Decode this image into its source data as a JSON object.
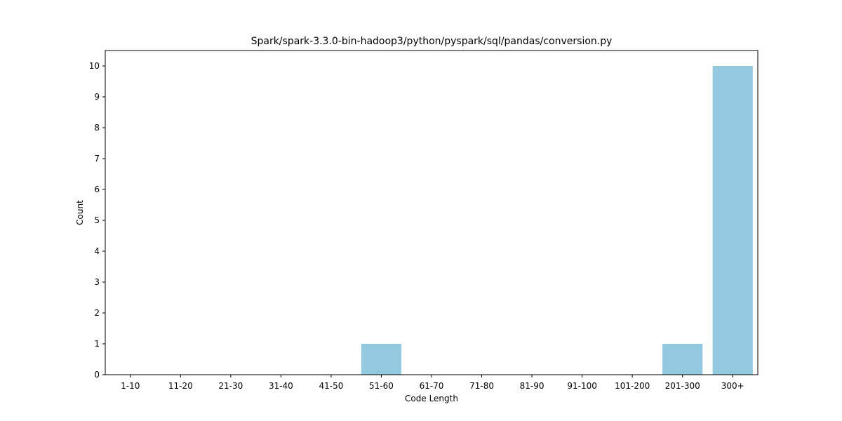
{
  "chart_data": {
    "type": "bar",
    "title": "Spark/spark-3.3.0-bin-hadoop3/python/pyspark/sql/pandas/conversion.py",
    "xlabel": "Code Length",
    "ylabel": "Count",
    "categories": [
      "1-10",
      "11-20",
      "21-30",
      "31-40",
      "41-50",
      "51-60",
      "61-70",
      "71-80",
      "81-90",
      "91-100",
      "101-200",
      "201-300",
      "300+"
    ],
    "values": [
      0,
      0,
      0,
      0,
      0,
      1,
      0,
      0,
      0,
      0,
      0,
      1,
      10
    ],
    "ylim": [
      0,
      10.5
    ],
    "yticks": [
      "0",
      "1",
      "2",
      "3",
      "4",
      "5",
      "6",
      "7",
      "8",
      "9",
      "10"
    ],
    "bar_color": "#92c9de",
    "grid": false,
    "legend": "none"
  }
}
